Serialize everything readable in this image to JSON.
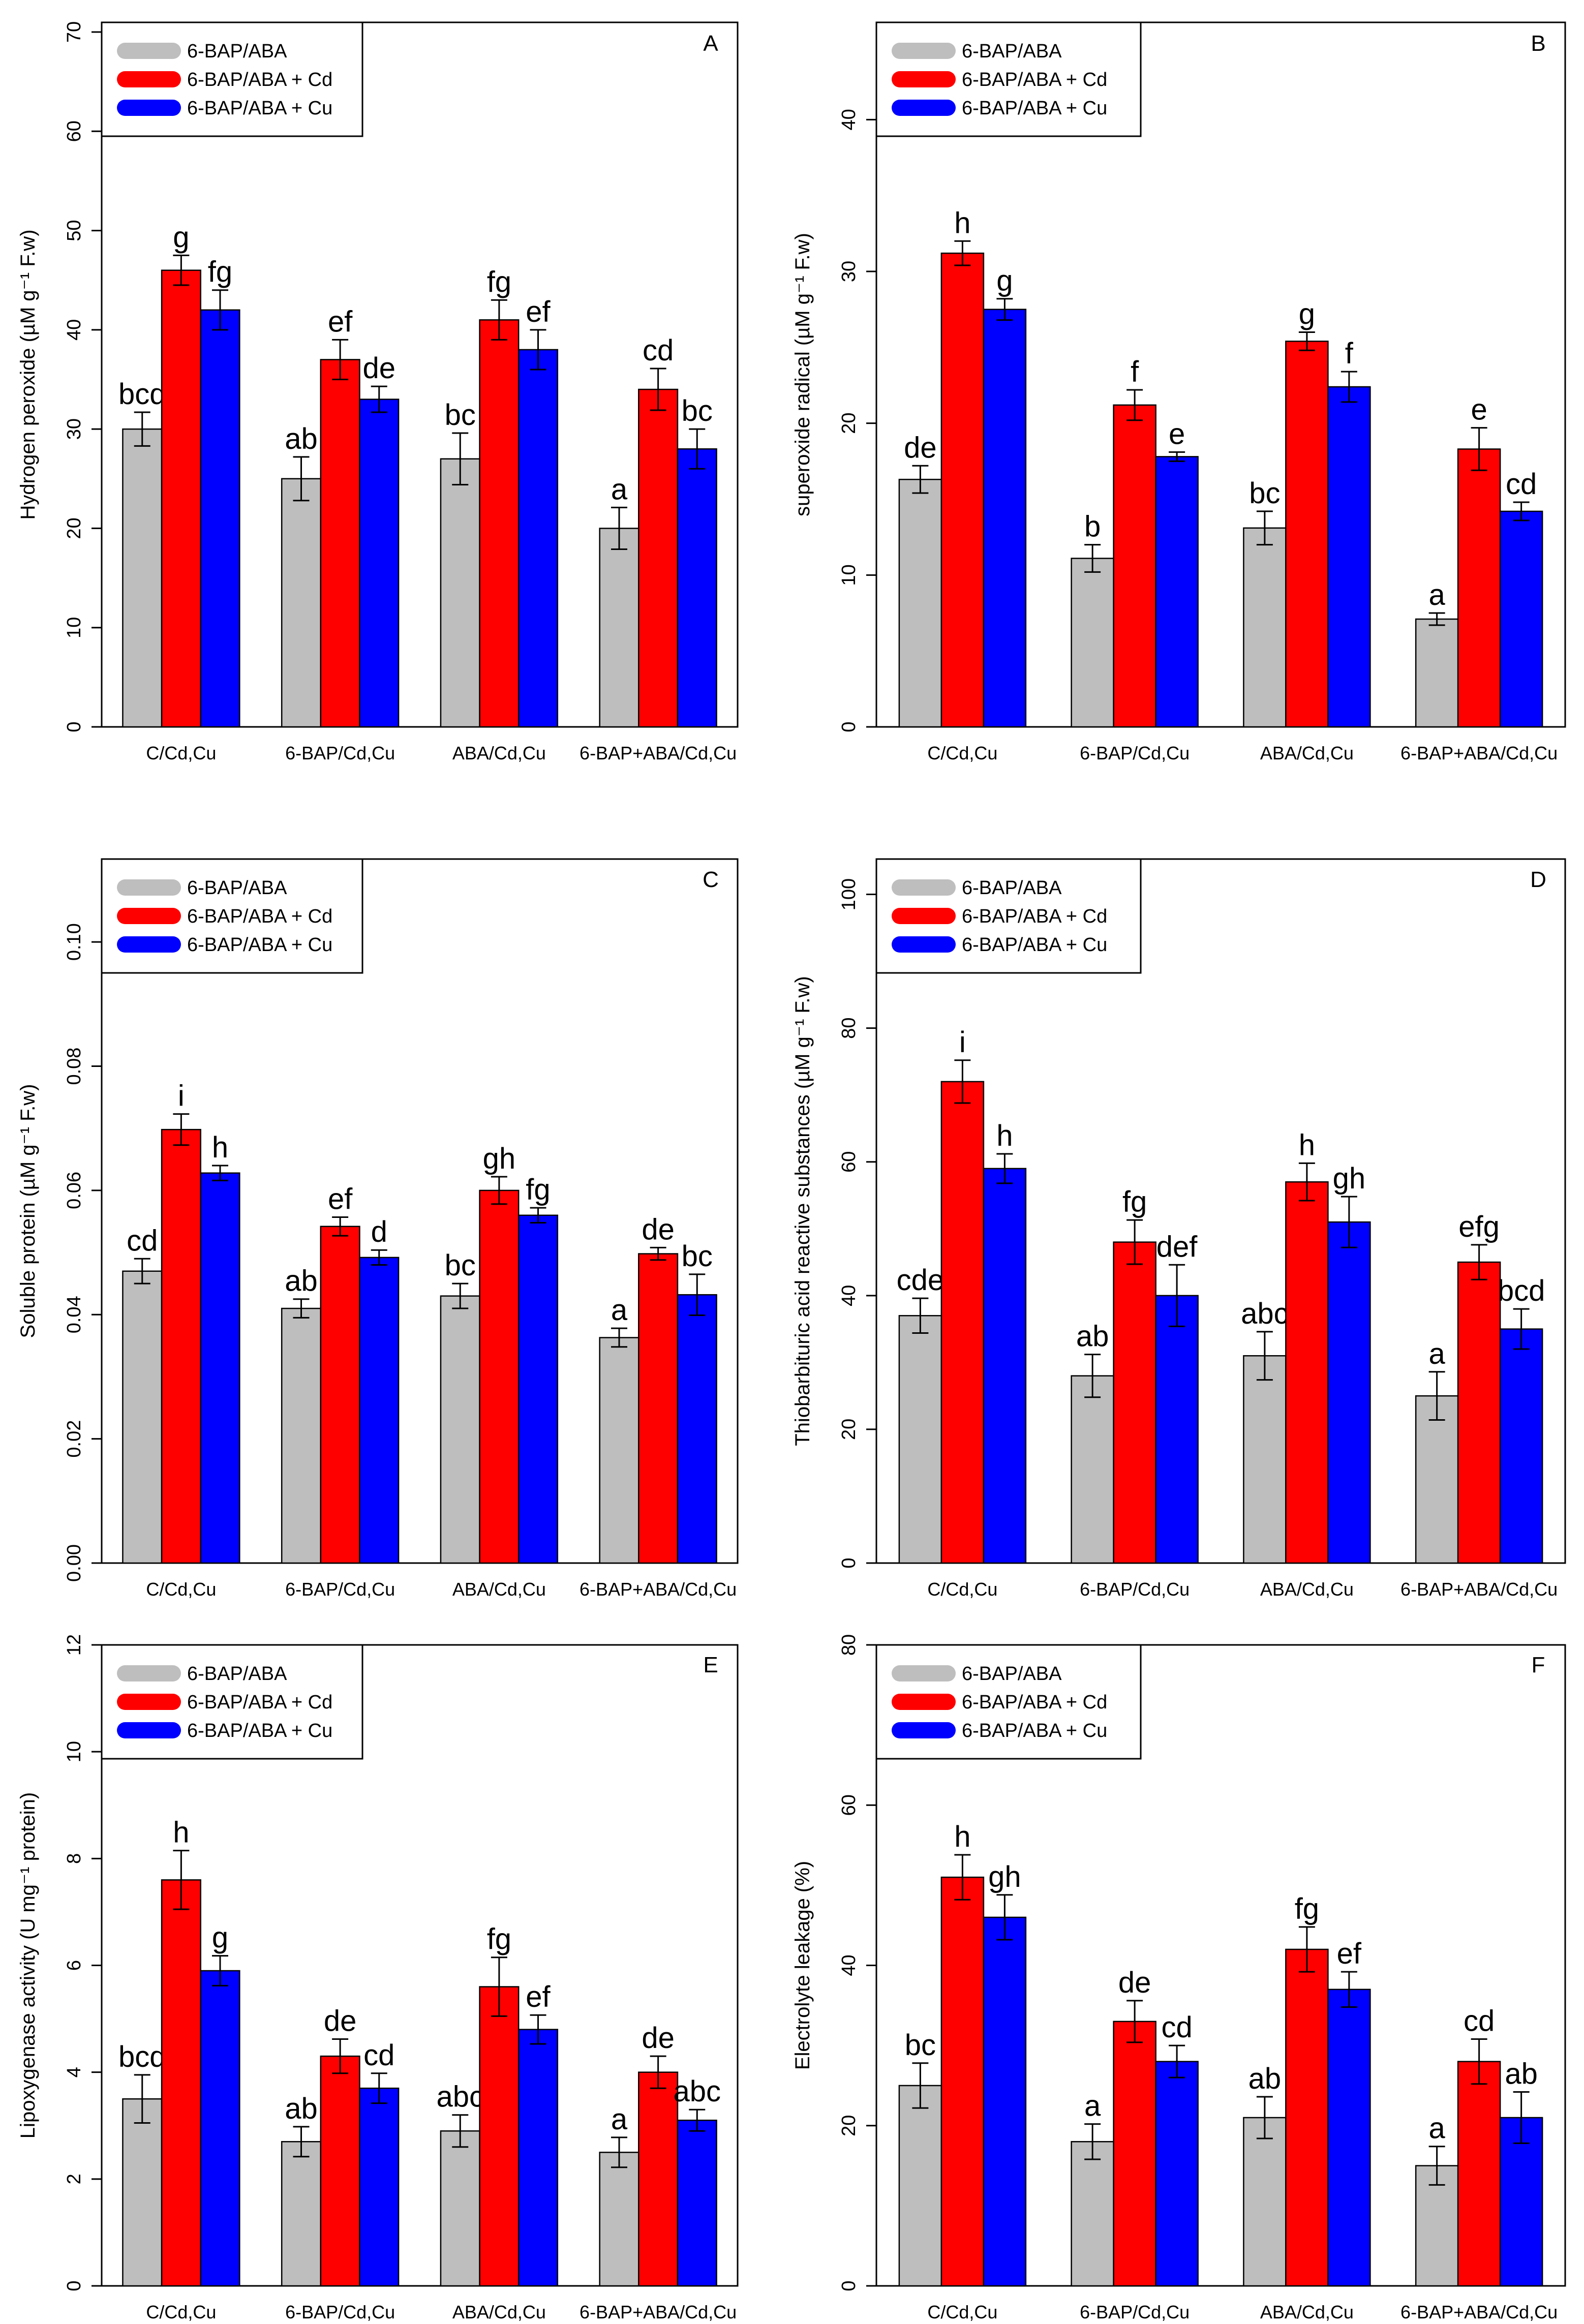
{
  "figure": {
    "legend_items": [
      {
        "label": "6-BAP/ABA",
        "color": "#bebebe"
      },
      {
        "label": "6-BAP/ABA + Cd",
        "color": "#ff0000"
      },
      {
        "label": "6-BAP/ABA + Cu",
        "color": "#0000ff"
      }
    ],
    "categories": [
      "C/Cd,Cu",
      "6-BAP/Cd,Cu",
      "ABA/Cd,Cu",
      "6-BAP+ABA/Cd,Cu"
    ]
  },
  "chart_data": [
    {
      "type": "bar",
      "panel": "A",
      "ylabel": "Hydrogen peroxide (µM g⁻¹ F.w)",
      "ylim": [
        0,
        70
      ],
      "yticks": [
        0,
        10,
        20,
        30,
        40,
        50,
        60,
        70
      ],
      "categories": [
        "C/Cd,Cu",
        "6-BAP/Cd,Cu",
        "ABA/Cd,Cu",
        "6-BAP+ABA/Cd,Cu"
      ],
      "series": [
        {
          "name": "6-BAP/ABA",
          "color": "#bebebe",
          "values": [
            30,
            25,
            27,
            20
          ],
          "errors": [
            1.7,
            2.2,
            2.6,
            2.1
          ],
          "labels": [
            "bcd",
            "ab",
            "bc",
            "a"
          ]
        },
        {
          "name": "6-BAP/ABA + Cd",
          "color": "#ff0000",
          "values": [
            46,
            37,
            41,
            34
          ],
          "errors": [
            1.5,
            2.0,
            2.0,
            2.1
          ],
          "labels": [
            "g",
            "ef",
            "fg",
            "cd"
          ]
        },
        {
          "name": "6-BAP/ABA + Cu",
          "color": "#0000ff",
          "values": [
            42,
            33,
            38,
            28
          ],
          "errors": [
            2.0,
            1.3,
            2.0,
            2.0
          ],
          "labels": [
            "fg",
            "de",
            "ef",
            "bc"
          ]
        }
      ]
    },
    {
      "type": "bar",
      "panel": "B",
      "ylabel": "superoxide radical (µM g⁻¹ F.w)",
      "ylim": [
        0,
        45
      ],
      "yticks": [
        0,
        10,
        20,
        30,
        40
      ],
      "categories": [
        "C/Cd,Cu",
        "6-BAP/Cd,Cu",
        "ABA/Cd,Cu",
        "6-BAP+ABA/Cd,Cu"
      ],
      "series": [
        {
          "name": "6-BAP/ABA",
          "color": "#bebebe",
          "values": [
            16.3,
            11.1,
            13.1,
            7.1
          ],
          "errors": [
            0.9,
            0.9,
            1.1,
            0.4
          ],
          "labels": [
            "de",
            "b",
            "bc",
            "a"
          ]
        },
        {
          "name": "6-BAP/ABA + Cd",
          "color": "#ff0000",
          "values": [
            31.2,
            21.2,
            25.4,
            18.3
          ],
          "errors": [
            0.8,
            1.0,
            0.6,
            1.4
          ],
          "labels": [
            "h",
            "f",
            "g",
            "e"
          ]
        },
        {
          "name": "6-BAP/ABA + Cu",
          "color": "#0000ff",
          "values": [
            27.5,
            17.8,
            22.4,
            14.2
          ],
          "errors": [
            0.7,
            0.3,
            1.0,
            0.6
          ],
          "labels": [
            "g",
            "e",
            "f",
            "cd"
          ]
        }
      ]
    },
    {
      "type": "bar",
      "panel": "C",
      "ylabel": "Soluble protein (µM g⁻¹ F.w)",
      "ylim": [
        0,
        0.11
      ],
      "yticks": [
        0,
        0.02,
        0.04,
        0.06,
        0.08,
        0.1
      ],
      "ytick_labels": [
        "0.00",
        "0.02",
        "0.04",
        "0.06",
        "0.08",
        "0.10"
      ],
      "categories": [
        "C/Cd,Cu",
        "6-BAP/Cd,Cu",
        "ABA/Cd,Cu",
        "6-BAP+ABA/Cd,Cu"
      ],
      "series": [
        {
          "name": "6-BAP/ABA",
          "color": "#bebebe",
          "values": [
            0.047,
            0.041,
            0.043,
            0.0363
          ],
          "errors": [
            0.002,
            0.0015,
            0.002,
            0.0015
          ],
          "labels": [
            "cd",
            "ab",
            "bc",
            "a"
          ]
        },
        {
          "name": "6-BAP/ABA + Cd",
          "color": "#ff0000",
          "values": [
            0.0698,
            0.0542,
            0.06,
            0.0498
          ],
          "errors": [
            0.0025,
            0.0015,
            0.0022,
            0.001
          ],
          "labels": [
            "i",
            "ef",
            "gh",
            "de"
          ]
        },
        {
          "name": "6-BAP/ABA + Cu",
          "color": "#0000ff",
          "values": [
            0.0628,
            0.0492,
            0.056,
            0.0432
          ],
          "errors": [
            0.0012,
            0.0012,
            0.0012,
            0.0033
          ],
          "labels": [
            "h",
            "d",
            "fg",
            "bc"
          ]
        }
      ]
    },
    {
      "type": "bar",
      "panel": "D",
      "ylabel": "Thiobarbituric acid reactive substances (µM g⁻¹ F.w)",
      "ylim": [
        0,
        110
      ],
      "yticks": [
        0,
        20,
        40,
        60,
        80,
        100
      ],
      "categories": [
        "C/Cd,Cu",
        "6-BAP/Cd,Cu",
        "ABA/Cd,Cu",
        "6-BAP+ABA/Cd,Cu"
      ],
      "series": [
        {
          "name": "6-BAP/ABA",
          "color": "#bebebe",
          "values": [
            37,
            28,
            31,
            25
          ],
          "errors": [
            2.6,
            3.2,
            3.6,
            3.6
          ],
          "labels": [
            "cde",
            "ab",
            "abc",
            "a"
          ]
        },
        {
          "name": "6-BAP/ABA + Cd",
          "color": "#ff0000",
          "values": [
            72,
            48,
            57,
            45
          ],
          "errors": [
            3.2,
            3.3,
            2.8,
            2.6
          ],
          "labels": [
            "i",
            "fg",
            "h",
            "efg"
          ]
        },
        {
          "name": "6-BAP/ABA + Cu",
          "color": "#0000ff",
          "values": [
            59,
            40,
            51,
            35
          ],
          "errors": [
            2.2,
            4.6,
            3.8,
            3.0
          ],
          "labels": [
            "h",
            "def",
            "gh",
            "bcd"
          ]
        }
      ]
    },
    {
      "type": "bar",
      "panel": "E",
      "ylabel": "Lipoxygenase activity (U mg⁻¹ protein)",
      "ylim": [
        0,
        12
      ],
      "yticks": [
        0,
        2,
        4,
        6,
        8,
        10,
        12
      ],
      "categories": [
        "C/Cd,Cu",
        "6-BAP/Cd,Cu",
        "ABA/Cd,Cu",
        "6-BAP+ABA/Cd,Cu"
      ],
      "series": [
        {
          "name": "6-BAP/ABA",
          "color": "#bebebe",
          "values": [
            3.5,
            2.7,
            2.9,
            2.5
          ],
          "errors": [
            0.45,
            0.28,
            0.3,
            0.28
          ],
          "labels": [
            "bcd",
            "ab",
            "abc",
            "a"
          ]
        },
        {
          "name": "6-BAP/ABA + Cd",
          "color": "#ff0000",
          "values": [
            7.6,
            4.3,
            5.6,
            4.0
          ],
          "errors": [
            0.55,
            0.32,
            0.55,
            0.3
          ],
          "labels": [
            "h",
            "de",
            "fg",
            "de"
          ]
        },
        {
          "name": "6-BAP/ABA + Cu",
          "color": "#0000ff",
          "values": [
            5.9,
            3.7,
            4.8,
            3.1
          ],
          "errors": [
            0.28,
            0.28,
            0.27,
            0.2
          ],
          "labels": [
            "g",
            "cd",
            "ef",
            "abc"
          ]
        }
      ]
    },
    {
      "type": "bar",
      "panel": "F",
      "ylabel": "Electrolyte leakage (%)",
      "ylim": [
        0,
        80
      ],
      "yticks": [
        0,
        20,
        40,
        60,
        80
      ],
      "categories": [
        "C/Cd,Cu",
        "6-BAP/Cd,Cu",
        "ABA/Cd,Cu",
        "6-BAP+ABA/Cd,Cu"
      ],
      "series": [
        {
          "name": "6-BAP/ABA",
          "color": "#bebebe",
          "values": [
            25,
            18,
            21,
            15
          ],
          "errors": [
            2.8,
            2.2,
            2.6,
            2.4
          ],
          "labels": [
            "bc",
            "a",
            "ab",
            "a"
          ]
        },
        {
          "name": "6-BAP/ABA + Cd",
          "color": "#ff0000",
          "values": [
            51,
            33,
            42,
            28
          ],
          "errors": [
            2.8,
            2.6,
            2.8,
            2.8
          ],
          "labels": [
            "h",
            "de",
            "fg",
            "cd"
          ]
        },
        {
          "name": "6-BAP/ABA + Cu",
          "color": "#0000ff",
          "values": [
            46,
            28,
            37,
            21
          ],
          "errors": [
            2.8,
            2.0,
            2.2,
            3.2
          ],
          "labels": [
            "gh",
            "cd",
            "ef",
            "ab"
          ]
        }
      ]
    }
  ]
}
